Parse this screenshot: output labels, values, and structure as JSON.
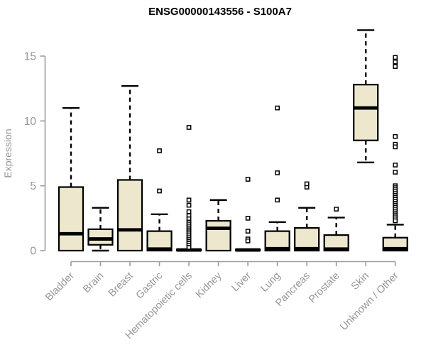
{
  "chart_data": {
    "type": "boxplot",
    "title": "ENSG00000143556 - S100A7",
    "ylabel": "Expression",
    "xlabel": "",
    "ylim": [
      0,
      17.2
    ],
    "yticks": [
      0,
      5,
      10,
      15
    ],
    "grid": false,
    "legend": false,
    "categories": [
      "Bladder",
      "Brain",
      "Breast",
      "Gastric",
      "Hematopoietic cells",
      "Kidney",
      "Liver",
      "Lung",
      "Pancreas",
      "Prostate",
      "Skin",
      "Unknown / Other"
    ],
    "series": [
      {
        "category": "Bladder",
        "whisker_low": 0,
        "q1": 0,
        "median": 1.3,
        "q3": 4.9,
        "whisker_high": 11.0,
        "outliers": []
      },
      {
        "category": "Brain",
        "whisker_low": 0,
        "q1": 0.45,
        "median": 0.9,
        "q3": 1.65,
        "whisker_high": 3.3,
        "outliers": []
      },
      {
        "category": "Breast",
        "whisker_low": 0,
        "q1": 0,
        "median": 1.6,
        "q3": 5.45,
        "whisker_high": 12.7,
        "outliers": []
      },
      {
        "category": "Gastric",
        "whisker_low": 0,
        "q1": 0,
        "median": 0.12,
        "q3": 1.5,
        "whisker_high": 2.8,
        "outliers": [
          4.6,
          7.7
        ]
      },
      {
        "category": "Hematopoietic cells",
        "whisker_low": 0,
        "q1": 0,
        "median": 0.05,
        "q3": 0.1,
        "whisker_high": 0.1,
        "outliers": [
          9.5,
          3.9,
          3.5,
          3.0,
          2.7,
          2.45,
          2.2,
          2.05,
          1.9,
          1.75,
          1.6,
          1.45,
          1.3,
          1.15,
          1.0,
          0.85,
          0.7,
          0.55,
          0.4,
          0.25
        ]
      },
      {
        "category": "Kidney",
        "whisker_low": 0,
        "q1": 0,
        "median": 1.72,
        "q3": 2.3,
        "whisker_high": 3.9,
        "outliers": []
      },
      {
        "category": "Liver",
        "whisker_low": 0,
        "q1": 0,
        "median": 0.05,
        "q3": 0.1,
        "whisker_high": 0.1,
        "outliers": [
          5.5,
          2.5,
          1.5,
          0.9,
          0.75
        ]
      },
      {
        "category": "Lung",
        "whisker_low": 0,
        "q1": 0,
        "median": 0.15,
        "q3": 1.5,
        "whisker_high": 2.2,
        "outliers": [
          3.9,
          6.0,
          11.0
        ]
      },
      {
        "category": "Pancreas",
        "whisker_low": 0,
        "q1": 0,
        "median": 0.15,
        "q3": 1.75,
        "whisker_high": 3.3,
        "outliers": [
          4.9,
          5.15
        ]
      },
      {
        "category": "Prostate",
        "whisker_low": 0,
        "q1": 0,
        "median": 0.12,
        "q3": 1.2,
        "whisker_high": 2.55,
        "outliers": [
          3.2
        ]
      },
      {
        "category": "Skin",
        "whisker_low": 6.8,
        "q1": 8.5,
        "median": 11.0,
        "q3": 12.8,
        "whisker_high": 17.0,
        "outliers": []
      },
      {
        "category": "Unknown / Other",
        "whisker_low": 0,
        "q1": 0,
        "median": 0.15,
        "q3": 1.0,
        "whisker_high": 2.0,
        "outliers": [
          14.9,
          14.55,
          14.2,
          8.8,
          8.2,
          8.0,
          6.6,
          6.05,
          5.0,
          4.85,
          4.7,
          4.55,
          4.4,
          4.25,
          4.1,
          3.95,
          3.8,
          3.65,
          3.5,
          3.35,
          3.2,
          3.05,
          2.9,
          2.75,
          2.6,
          2.45,
          2.3
        ]
      }
    ],
    "colors": {
      "box_fill": "#EDE7CE",
      "box_stroke": "#000000",
      "median_stroke": "#000000",
      "whisker_stroke": "#000000",
      "outlier_fill": "#FFFFFF",
      "outlier_stroke": "#000000",
      "axis": "#9C9C9C",
      "tick_label": "#969696",
      "title": "#000000"
    }
  }
}
